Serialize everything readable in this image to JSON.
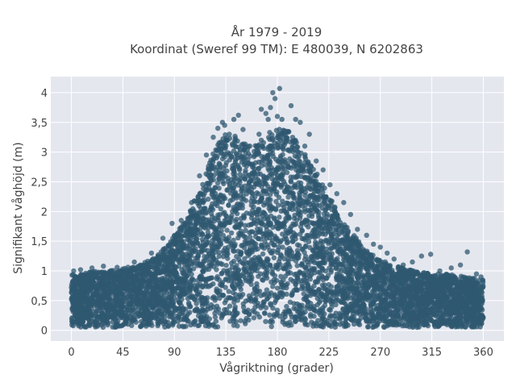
{
  "chart_data": {
    "type": "scatter",
    "title_line1": "År 1979 - 2019",
    "title_line2": "Koordinat (Sweref 99 TM): E 480039, N 6202863",
    "xlabel": "Vågriktning (grader)",
    "ylabel": "Signifikant våghöjd (m)",
    "xlim": [
      -18,
      378
    ],
    "ylim": [
      -0.18,
      4.27
    ],
    "x_ticks": [
      0,
      45,
      90,
      135,
      180,
      225,
      270,
      315,
      360
    ],
    "x_tick_labels": [
      "0",
      "45",
      "90",
      "135",
      "180",
      "225",
      "270",
      "315",
      "360"
    ],
    "y_ticks": [
      0,
      0.5,
      1,
      1.5,
      2,
      2.5,
      3,
      3.5,
      4
    ],
    "y_tick_labels": [
      "0",
      "0,5",
      "1",
      "1,5",
      "2",
      "2,5",
      "3",
      "3,5",
      "4"
    ],
    "grid": true,
    "colors": {
      "plot_background": "#e5e7ef",
      "grid": "#ffffff",
      "marker": "#2f5870"
    },
    "envelope": {
      "x": [
        0,
        10,
        20,
        30,
        45,
        60,
        75,
        90,
        100,
        110,
        120,
        130,
        135,
        140,
        150,
        160,
        170,
        180,
        190,
        200,
        210,
        220,
        230,
        240,
        250,
        260,
        270,
        280,
        290,
        300,
        315,
        330,
        345,
        360
      ],
      "y_max": [
        0.95,
        0.95,
        1.0,
        1.0,
        1.05,
        1.1,
        1.25,
        1.6,
        1.85,
        2.3,
        2.8,
        3.25,
        3.4,
        3.3,
        3.2,
        3.1,
        3.3,
        3.4,
        3.35,
        3.1,
        2.8,
        2.45,
        2.1,
        1.75,
        1.55,
        1.3,
        1.2,
        1.1,
        1.05,
        1.0,
        0.95,
        0.95,
        0.9,
        0.85
      ],
      "y_min": [
        0.05,
        0.05,
        0.05,
        0.05,
        0.05,
        0.05,
        0.05,
        0.05,
        0.05,
        0.05,
        0.05,
        0.05,
        0.05,
        0.05,
        0.05,
        0.05,
        0.05,
        0.05,
        0.05,
        0.05,
        0.05,
        0.05,
        0.05,
        0.05,
        0.05,
        0.05,
        0.05,
        0.05,
        0.05,
        0.05,
        0.05,
        0.05,
        0.05,
        0.05
      ]
    },
    "outliers": {
      "x": [
        2,
        8,
        18,
        28,
        40,
        55,
        70,
        80,
        88,
        96,
        105,
        112,
        118,
        124,
        128,
        132,
        134,
        138,
        142,
        146,
        150,
        156,
        164,
        166,
        170,
        172,
        174,
        176,
        178,
        180,
        182,
        184,
        186,
        188,
        192,
        196,
        200,
        204,
        208,
        214,
        220,
        226,
        232,
        238,
        244,
        250,
        258,
        264,
        270,
        276,
        282,
        290,
        298,
        306,
        314,
        322,
        332,
        340,
        346,
        354,
        358
      ],
      "y": [
        1.0,
        1.02,
        1.05,
        1.08,
        1.06,
        1.15,
        1.3,
        1.55,
        1.8,
        1.85,
        2.15,
        2.6,
        2.95,
        3.25,
        3.4,
        3.5,
        3.45,
        3.3,
        3.55,
        3.62,
        3.38,
        3.1,
        3.3,
        3.72,
        3.65,
        3.55,
        3.75,
        4.0,
        3.9,
        3.6,
        4.07,
        3.55,
        3.3,
        3.35,
        3.78,
        3.55,
        3.5,
        3.1,
        3.3,
        2.85,
        2.7,
        2.45,
        2.3,
        2.15,
        1.95,
        1.7,
        1.6,
        1.45,
        1.4,
        1.3,
        1.2,
        1.1,
        1.15,
        1.25,
        1.28,
        1.0,
        1.05,
        1.1,
        1.32,
        0.95,
        0.9
      ]
    }
  }
}
